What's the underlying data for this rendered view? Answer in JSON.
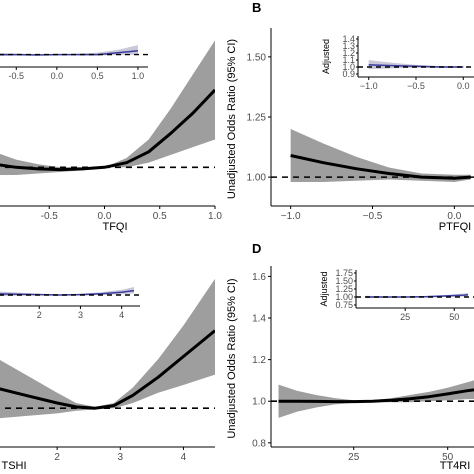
{
  "colors": {
    "band": "#9e9e9e",
    "line": "#000000",
    "ref": "#000000",
    "axis": "#000000",
    "inset_band": "#c9c9d9",
    "inset_line": "#3b3ba0"
  },
  "chart_data": [
    {
      "type": "line",
      "panel": "A",
      "panel_label": "",
      "xlabel": "TFQI",
      "ylabel": "",
      "xlim": [
        -1.0,
        1.0
      ],
      "ylim": [
        0.75,
        1.9
      ],
      "xticks": [
        "-0.5",
        "0.0",
        "0.5",
        "1.0"
      ],
      "xtick_values": [
        -0.5,
        0.0,
        0.5,
        1.0
      ],
      "yticks": [],
      "reference_line": 1.0,
      "series": [
        {
          "x": [
            -1.0,
            -0.8,
            -0.6,
            -0.4,
            -0.2,
            0.0,
            0.2,
            0.4,
            0.6,
            0.8,
            1.0
          ],
          "y": [
            1.02,
            1.0,
            0.99,
            0.985,
            0.99,
            1.0,
            1.03,
            1.1,
            1.22,
            1.35,
            1.5
          ],
          "lower": [
            0.95,
            0.95,
            0.96,
            0.97,
            0.98,
            1.0,
            1.0,
            1.03,
            1.08,
            1.13,
            1.18
          ],
          "upper": [
            1.1,
            1.05,
            1.02,
            1.0,
            1.0,
            1.0,
            1.06,
            1.18,
            1.38,
            1.6,
            1.82
          ]
        }
      ],
      "inset": {
        "ylabel": "",
        "xlim": [
          -0.75,
          1.05
        ],
        "xticks": [
          "-0.5",
          "0.0",
          "0.5",
          "1.0"
        ],
        "xtick_values": [
          -0.5,
          0.0,
          0.5,
          1.0
        ],
        "ylim": [
          0.8,
          1.5
        ],
        "yticks": [],
        "reference_line": 1.0,
        "x": [
          -0.75,
          -0.5,
          -0.25,
          0.0,
          0.25,
          0.5,
          0.75,
          1.0
        ],
        "y": [
          1.0,
          1.0,
          0.99,
          1.0,
          1.0,
          1.0,
          1.04,
          1.08
        ],
        "lower": [
          0.97,
          0.98,
          0.98,
          1.0,
          0.99,
          0.98,
          0.99,
          1.0
        ],
        "upper": [
          1.03,
          1.02,
          1.01,
          1.0,
          1.02,
          1.04,
          1.1,
          1.2
        ]
      }
    },
    {
      "type": "line",
      "panel": "B",
      "panel_label": "B",
      "xlabel": "PTFQI",
      "ylabel": "Unadjusted Odds Ratio (95% CI)",
      "xlim": [
        -1.12,
        0.12
      ],
      "ylim": [
        0.88,
        1.62
      ],
      "xticks": [
        "−1.0",
        "−0.5",
        "0.0"
      ],
      "xtick_values": [
        -1.0,
        -0.5,
        0.0
      ],
      "yticks": [
        "1.00",
        "1.25",
        "1.50"
      ],
      "ytick_values": [
        1.0,
        1.25,
        1.5
      ],
      "reference_line": 1.0,
      "series": [
        {
          "x": [
            -1.0,
            -0.8,
            -0.6,
            -0.4,
            -0.2,
            0.0,
            0.1
          ],
          "y": [
            1.09,
            1.06,
            1.035,
            1.015,
            1.0,
            0.995,
            1.0
          ],
          "lower": [
            0.98,
            0.98,
            0.985,
            0.99,
            0.985,
            0.98,
            0.99
          ],
          "upper": [
            1.2,
            1.14,
            1.085,
            1.04,
            1.015,
            1.01,
            1.01
          ]
        }
      ],
      "inset": {
        "ylabel": "Adjusted",
        "xlim": [
          -1.05,
          0.05
        ],
        "xticks": [
          "−1.0",
          "−0.5",
          "0.0"
        ],
        "xtick_values": [
          -1.0,
          -0.5,
          0.0
        ],
        "ylim": [
          0.9,
          1.4
        ],
        "yticks": [
          "0.9",
          "1.0",
          "1.1",
          "1.2",
          "1.3",
          "1.4"
        ],
        "ytick_values": [
          0.9,
          1.0,
          1.1,
          1.2,
          1.3,
          1.4
        ],
        "reference_line": 1.0,
        "x": [
          -1.0,
          -0.75,
          -0.5,
          -0.25,
          0.0
        ],
        "y": [
          1.03,
          1.02,
          1.01,
          1.0,
          1.0
        ],
        "lower": [
          0.97,
          0.98,
          0.99,
          0.99,
          0.99
        ],
        "upper": [
          1.1,
          1.06,
          1.03,
          1.015,
          1.01
        ]
      }
    },
    {
      "type": "line",
      "panel": "C",
      "panel_label": "",
      "xlabel": "TSHI",
      "ylabel": "",
      "xlim": [
        1.0,
        4.5
      ],
      "ylim": [
        0.85,
        1.55
      ],
      "xticks": [
        "2",
        "3",
        "4"
      ],
      "xtick_values": [
        2,
        3,
        4
      ],
      "yticks": [],
      "reference_line": 1.0,
      "series": [
        {
          "x": [
            1.0,
            1.5,
            2.0,
            2.3,
            2.6,
            2.9,
            3.2,
            3.6,
            4.0,
            4.5
          ],
          "y": [
            1.08,
            1.05,
            1.02,
            1.005,
            1.0,
            1.01,
            1.05,
            1.12,
            1.2,
            1.3
          ],
          "lower": [
            0.96,
            0.97,
            0.98,
            0.99,
            0.995,
            1.0,
            1.02,
            1.06,
            1.09,
            1.13
          ],
          "upper": [
            1.2,
            1.13,
            1.06,
            1.02,
            1.005,
            1.02,
            1.08,
            1.19,
            1.32,
            1.5
          ]
        }
      ],
      "inset": {
        "ylabel": "",
        "xlim": [
          0.95,
          4.3
        ],
        "xticks": [
          "2",
          "3",
          "4"
        ],
        "xtick_values": [
          2,
          3,
          4
        ],
        "ylim": [
          0.8,
          1.6
        ],
        "yticks": [],
        "reference_line": 1.0,
        "x": [
          1.0,
          1.5,
          2.0,
          2.5,
          3.0,
          3.5,
          4.0,
          4.3
        ],
        "y": [
          1.03,
          1.02,
          1.01,
          1.0,
          1.01,
          1.03,
          1.07,
          1.11
        ],
        "lower": [
          0.97,
          0.98,
          0.99,
          0.99,
          0.99,
          1.0,
          1.02,
          1.04
        ],
        "upper": [
          1.09,
          1.06,
          1.03,
          1.01,
          1.03,
          1.07,
          1.13,
          1.2
        ]
      }
    },
    {
      "type": "line",
      "panel": "D",
      "panel_label": "D",
      "xlabel": "TT4RI",
      "ylabel": "Unadjusted Odds Ratio (95% CI)",
      "xlim": [
        3,
        57
      ],
      "ylim": [
        0.78,
        1.65
      ],
      "xticks": [
        "25",
        "50"
      ],
      "xtick_values": [
        25,
        50
      ],
      "yticks": [
        "0.8",
        "1.0",
        "1.2",
        "1.4",
        "1.6"
      ],
      "ytick_values": [
        0.8,
        1.0,
        1.2,
        1.4,
        1.6
      ],
      "reference_line": 1.0,
      "series": [
        {
          "x": [
            5,
            10,
            15,
            20,
            25,
            30,
            35,
            40,
            45,
            50,
            55,
            57
          ],
          "y": [
            1.0,
            1.0,
            0.999,
            0.998,
            0.998,
            1.0,
            1.005,
            1.012,
            1.022,
            1.035,
            1.05,
            1.055
          ],
          "lower": [
            0.92,
            0.95,
            0.97,
            0.985,
            0.992,
            0.995,
            0.995,
            0.995,
            1.0,
            1.005,
            1.01,
            1.01
          ],
          "upper": [
            1.08,
            1.05,
            1.03,
            1.015,
            1.005,
            1.005,
            1.015,
            1.03,
            1.045,
            1.065,
            1.09,
            1.1
          ]
        }
      ],
      "inset": {
        "ylabel": "Adjusted",
        "xlim": [
          3,
          57
        ],
        "xticks": [
          "25",
          "50"
        ],
        "xtick_values": [
          25,
          50
        ],
        "ylim": [
          0.75,
          1.75
        ],
        "yticks": [
          "0.75",
          "1.00",
          "1.25",
          "1.50",
          "1.75"
        ],
        "ytick_values": [
          0.75,
          1.0,
          1.25,
          1.5,
          1.75
        ],
        "reference_line": 1.0,
        "x": [
          5,
          15,
          25,
          35,
          45,
          55,
          57
        ],
        "y": [
          1.0,
          1.0,
          1.0,
          1.01,
          1.03,
          1.06,
          1.07
        ],
        "lower": [
          0.96,
          0.98,
          0.99,
          0.99,
          1.0,
          1.01,
          1.01
        ],
        "upper": [
          1.04,
          1.02,
          1.01,
          1.03,
          1.06,
          1.11,
          1.13
        ]
      }
    }
  ]
}
